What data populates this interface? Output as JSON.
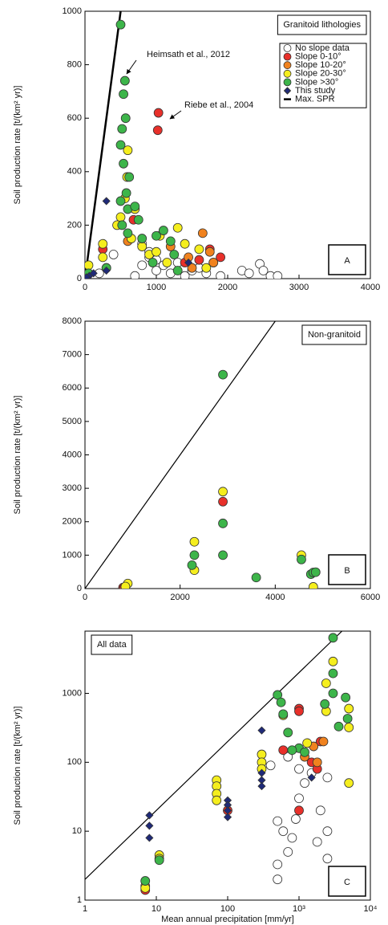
{
  "chart_data": [
    {
      "type": "scatter",
      "ylabel": "Soil production rate [t/(km² yr)]",
      "note": "Granitoid lithologies",
      "panel_label": "A",
      "annotations": [
        "Heimsath et al., 2012",
        "Riebe et al., 2004"
      ],
      "xlim": [
        0,
        4000
      ],
      "ylim": [
        0,
        1000
      ],
      "xticks": [
        0,
        1000,
        2000,
        3000,
        4000
      ],
      "yticks": [
        0,
        200,
        400,
        600,
        800,
        1000
      ],
      "series": [
        {
          "name": "No slope data",
          "color": "#ffffff",
          "marker": "circle",
          "x": [
            700,
            800,
            900,
            1000,
            1100,
            1200,
            1300,
            1400,
            1500,
            1600,
            1700,
            1800,
            1900,
            2200,
            2300,
            2450,
            2500,
            2600,
            2700,
            400,
            200,
            800,
            900,
            1000
          ],
          "y": [
            10,
            50,
            80,
            30,
            50,
            20,
            60,
            10,
            30,
            40,
            20,
            60,
            10,
            30,
            20,
            55,
            30,
            10,
            10,
            90,
            20,
            130,
            100,
            70
          ]
        },
        {
          "name": "Slope 0-10°",
          "color": "#e8302a",
          "marker": "circle",
          "x": [
            1030,
            1020,
            1900,
            1750,
            680,
            1400,
            250,
            1600,
            300
          ],
          "y": [
            620,
            555,
            80,
            110,
            220,
            60,
            110,
            70,
            40
          ]
        },
        {
          "name": "Slope 10-20°",
          "color": "#f0821e",
          "marker": "circle",
          "x": [
            1650,
            1750,
            1200,
            600,
            1450,
            1800,
            1500
          ],
          "y": [
            170,
            100,
            120,
            140,
            80,
            60,
            40
          ]
        },
        {
          "name": "Slope 20-30°",
          "color": "#f5ee1e",
          "marker": "circle",
          "x": [
            600,
            590,
            560,
            500,
            650,
            800,
            1050,
            1300,
            1400,
            1600,
            250,
            250,
            50,
            450,
            900,
            1150,
            1700,
            700,
            1000
          ],
          "y": [
            480,
            380,
            300,
            230,
            150,
            120,
            160,
            190,
            130,
            110,
            130,
            80,
            50,
            200,
            90,
            60,
            40,
            260,
            100
          ]
        },
        {
          "name": "Slope >30°",
          "color": "#3db54a",
          "marker": "circle",
          "x": [
            500,
            560,
            540,
            570,
            520,
            500,
            540,
            620,
            580,
            500,
            600,
            700,
            750,
            520,
            600,
            1000,
            1100,
            1200,
            950,
            1250,
            800,
            300,
            50,
            1300
          ],
          "y": [
            950,
            740,
            690,
            600,
            560,
            500,
            430,
            380,
            320,
            290,
            260,
            270,
            220,
            200,
            170,
            160,
            180,
            140,
            60,
            90,
            150,
            40,
            20,
            30
          ]
        },
        {
          "name": "This study",
          "color": "#1f2a78",
          "marker": "diamond",
          "x": [
            300,
            300,
            60,
            120,
            1450,
            20
          ],
          "y": [
            290,
            30,
            10,
            20,
            60,
            5
          ]
        }
      ],
      "lines": [
        {
          "name": "Max. SPR",
          "color": "#000000",
          "x": [
            0,
            500
          ],
          "y": [
            0,
            1000
          ]
        }
      ]
    },
    {
      "type": "scatter",
      "ylabel": "Soil production rate [t/(km² yr)]",
      "note": "Non-granitoid",
      "panel_label": "B",
      "xlim": [
        0,
        6000
      ],
      "ylim": [
        0,
        8000
      ],
      "xticks": [
        0,
        2000,
        4000,
        6000
      ],
      "yticks": [
        0,
        1000,
        2000,
        3000,
        4000,
        5000,
        6000,
        7000,
        8000
      ],
      "series": [
        {
          "color": "#e8302a",
          "marker": "circle",
          "x": [
            2900,
            800,
            820
          ],
          "y": [
            2600,
            30,
            10
          ]
        },
        {
          "color": "#f5ee1e",
          "marker": "circle",
          "x": [
            2900,
            2300,
            2300,
            900,
            850,
            4550,
            5400,
            5400,
            4800
          ],
          "y": [
            2900,
            1400,
            550,
            150,
            60,
            1000,
            600,
            320,
            50
          ]
        },
        {
          "color": "#3db54a",
          "marker": "circle",
          "x": [
            2900,
            2900,
            2900,
            2250,
            2300,
            3600,
            4550,
            4750,
            4800,
            4850
          ],
          "y": [
            6400,
            1950,
            1000,
            700,
            1000,
            330,
            870,
            430,
            480,
            490
          ]
        }
      ],
      "lines": [
        {
          "color": "#000000",
          "x": [
            0,
            4000
          ],
          "y": [
            0,
            8000
          ]
        }
      ]
    },
    {
      "type": "scatter",
      "ylabel": "Soil production rate [t/(km² yr)]",
      "xlabel": "Mean annual precipitation [mm/yr]",
      "note": "All data",
      "panel_label": "C",
      "xlog": true,
      "ylog": true,
      "xlim": [
        1,
        10000
      ],
      "ylim": [
        1,
        8000
      ],
      "xticks": [
        1,
        10,
        100,
        {
          "value": 1000,
          "label": "10³"
        },
        {
          "value": 10000,
          "label": "10⁴"
        }
      ],
      "yticks": [
        1,
        10,
        100,
        1000
      ],
      "series": [
        {
          "color": "#ffffff",
          "marker": "circle",
          "x": [
            500,
            500,
            600,
            700,
            800,
            900,
            1000,
            1200,
            1500,
            2000,
            2500,
            2500,
            2500,
            500,
            400,
            700,
            1000,
            1800
          ],
          "y": [
            2,
            3.3,
            10,
            5,
            8,
            15,
            30,
            50,
            70,
            20,
            10,
            4,
            60,
            14,
            90,
            120,
            80,
            7
          ]
        },
        {
          "color": "#e8302a",
          "marker": "circle",
          "x": [
            1000,
            1000,
            7,
            100,
            1500,
            1800,
            2000,
            1000,
            600
          ],
          "y": [
            600,
            550,
            1.4,
            20,
            100,
            80,
            200,
            20,
            150
          ]
        },
        {
          "color": "#f0821e",
          "marker": "circle",
          "x": [
            1600,
            7,
            1800,
            1200,
            2200
          ],
          "y": [
            170,
            1.6,
            100,
            120,
            200
          ]
        },
        {
          "color": "#f5ee1e",
          "marker": "circle",
          "x": [
            7,
            11,
            11,
            70,
            70,
            70,
            70,
            300,
            300,
            300,
            3000,
            2400,
            2400,
            5000,
            5000,
            5000,
            600,
            1300
          ],
          "y": [
            1.5,
            4.5,
            4,
            55,
            45,
            35,
            28,
            130,
            100,
            80,
            2900,
            1400,
            550,
            600,
            320,
            50,
            480,
            190
          ]
        },
        {
          "color": "#3db54a",
          "marker": "circle",
          "x": [
            7,
            11,
            500,
            560,
            600,
            3000,
            3000,
            3000,
            2300,
            3600,
            4500,
            4800,
            1000,
            1200,
            700,
            800
          ],
          "y": [
            1.9,
            3.8,
            950,
            740,
            500,
            6400,
            1950,
            1000,
            700,
            330,
            870,
            430,
            160,
            140,
            270,
            150
          ]
        },
        {
          "color": "#1f2a78",
          "marker": "diamond",
          "x": [
            8,
            8,
            8,
            100,
            100,
            100,
            100,
            300,
            300,
            300,
            300,
            1500
          ],
          "y": [
            17,
            12,
            8,
            28,
            24,
            20,
            16,
            290,
            70,
            55,
            45,
            60
          ]
        }
      ],
      "lines": [
        {
          "color": "#000000",
          "x": [
            1,
            4000
          ],
          "y": [
            2,
            8000
          ]
        }
      ]
    }
  ]
}
